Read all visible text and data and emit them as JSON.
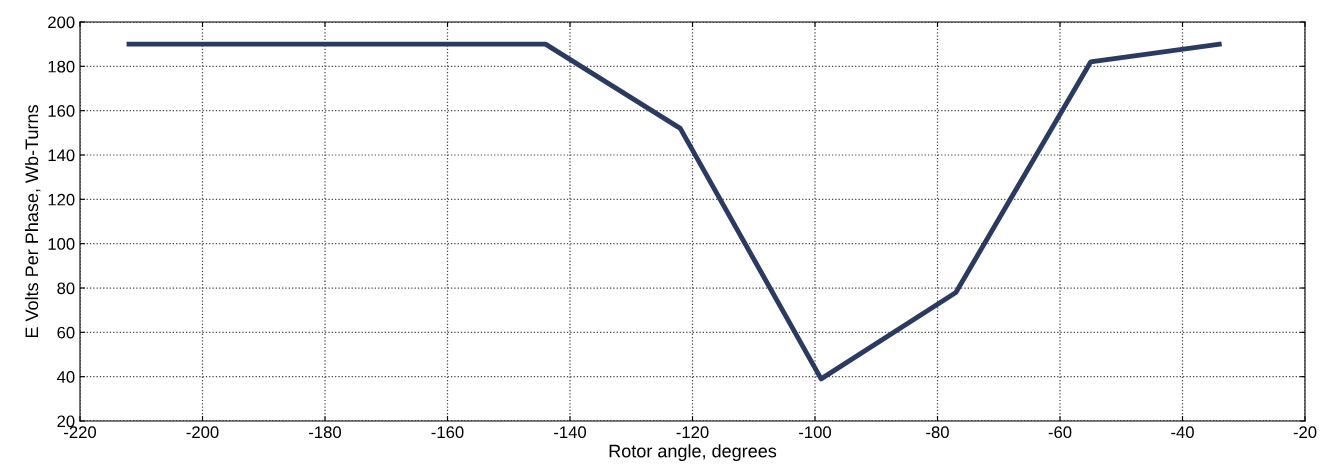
{
  "chart_data": {
    "type": "line",
    "xlabel": "Rotor angle, degrees",
    "ylabel": "E Volts Per Phase, Wb-Turns",
    "x": [
      -212,
      -144,
      -122,
      -99,
      -77,
      -55,
      -34
    ],
    "series": [
      {
        "color": "#2a3a60",
        "values": [
          190,
          190,
          152,
          39,
          78,
          182,
          190
        ]
      }
    ],
    "xlim": [
      -220,
      -20
    ],
    "ylim": [
      20,
      200
    ],
    "xticks": [
      -220,
      -200,
      -180,
      -160,
      -140,
      -120,
      -100,
      -80,
      -60,
      -40,
      -20
    ],
    "yticks": [
      20,
      40,
      60,
      80,
      100,
      120,
      140,
      160,
      180,
      200
    ],
    "grid": true,
    "marker": "none",
    "line_style": "solid"
  }
}
